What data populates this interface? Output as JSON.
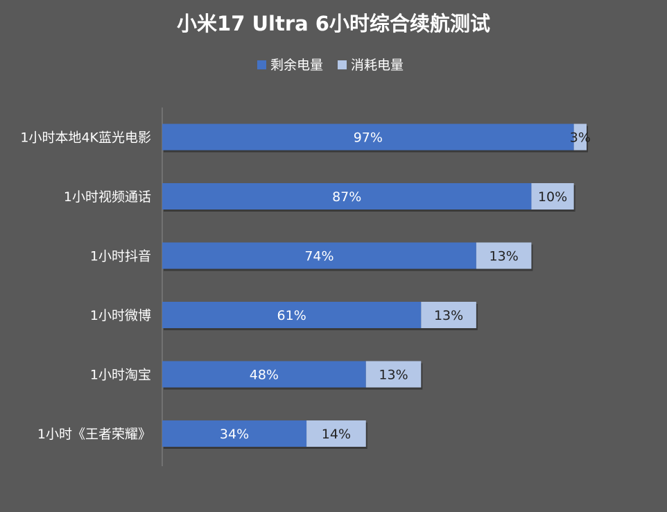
{
  "chart_data": {
    "type": "bar",
    "orientation": "horizontal",
    "stacked": true,
    "title": "小米17 Ultra 6小时综合续航测试",
    "categories": [
      "1小时本地4K蓝光电影",
      "1小时视频通话",
      "1小时抖音",
      "1小时微博",
      "1小时淘宝",
      "1小时《王者荣耀》"
    ],
    "series": [
      {
        "name": "剩余电量",
        "color": "#4472c4",
        "values": [
          97,
          87,
          74,
          61,
          48,
          34
        ],
        "labels": [
          "97%",
          "87%",
          "74%",
          "61%",
          "48%",
          "34%"
        ]
      },
      {
        "name": "消耗电量",
        "color": "#b4c7e7",
        "values": [
          3,
          10,
          13,
          13,
          13,
          14
        ],
        "labels": [
          "3%",
          "10%",
          "13%",
          "13%",
          "13%",
          "14%"
        ]
      }
    ],
    "xlim": [
      0,
      100
    ],
    "grid": false,
    "legend_position": "top-center"
  }
}
